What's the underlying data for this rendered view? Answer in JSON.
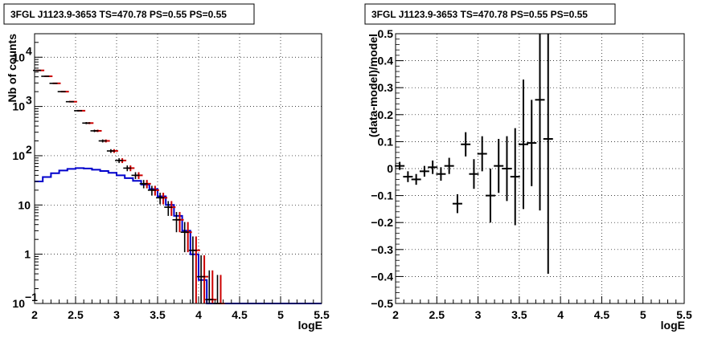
{
  "colors": {
    "data": "#000000",
    "model": "#cc0000",
    "source": "#0000cc",
    "grid": "#000000"
  },
  "chart_data": [
    {
      "type": "line",
      "title": "3FGL J1123.9-3653 TS=470.78 PS=0.55 PS=0.55",
      "xlabel": "logE",
      "ylabel": "Nb of counts",
      "xlim": [
        2,
        5.5
      ],
      "ylim": [
        0.1,
        30000
      ],
      "yscale": "log",
      "grid": true,
      "xticks": [
        {
          "v": 2,
          "t": "2"
        },
        {
          "v": 2.5,
          "t": "2.5"
        },
        {
          "v": 3,
          "t": "3"
        },
        {
          "v": 3.5,
          "t": "3.5"
        },
        {
          "v": 4,
          "t": "4"
        },
        {
          "v": 4.5,
          "t": "4.5"
        },
        {
          "v": 5,
          "t": "5"
        },
        {
          "v": 5.5,
          "t": "5.5"
        }
      ],
      "yticks": [
        {
          "v": 0.1,
          "t": "10",
          "e": "−1"
        },
        {
          "v": 1,
          "t": "1",
          "e": ""
        },
        {
          "v": 10,
          "t": "10",
          "e": ""
        },
        {
          "v": 100,
          "t": "10",
          "e": "2"
        },
        {
          "v": 1000,
          "t": "10",
          "e": "3"
        },
        {
          "v": 10000,
          "t": "10",
          "e": "4"
        }
      ],
      "data_points": {
        "x": [
          2.05,
          2.15,
          2.25,
          2.35,
          2.45,
          2.55,
          2.65,
          2.75,
          2.85,
          2.95,
          3.05,
          3.15,
          3.25,
          3.35,
          3.45,
          3.55,
          3.65,
          3.75,
          3.85,
          3.95,
          4.05,
          4.15,
          4.25
        ],
        "y": [
          5400,
          4100,
          2950,
          2000,
          1250,
          820,
          460,
          320,
          200,
          125,
          80,
          56,
          40,
          27,
          20,
          14,
          9,
          5,
          2.8,
          1.2,
          0.35,
          0.12,
          0.08
        ],
        "err": [
          75,
          65,
          55,
          45,
          36,
          29,
          22,
          18,
          14,
          11,
          9,
          7.5,
          6.3,
          5.2,
          4.5,
          3.7,
          3,
          2.2,
          1.7,
          1.1,
          0.6,
          0.35,
          0.3
        ]
      },
      "model": {
        "x": [
          2.05,
          2.15,
          2.25,
          2.35,
          2.45,
          2.55,
          2.65,
          2.75,
          2.85,
          2.95,
          3.05,
          3.15,
          3.25,
          3.35,
          3.45,
          3.55,
          3.65,
          3.75,
          3.85,
          3.95,
          4.05,
          4.15,
          4.25
        ],
        "y": [
          5400,
          4100,
          2950,
          2000,
          1250,
          820,
          460,
          320,
          200,
          125,
          80,
          56,
          40,
          27,
          20,
          14,
          9,
          5,
          2.8,
          1.2,
          0.35,
          0.12,
          0.08
        ],
        "err": [
          75,
          65,
          55,
          45,
          36,
          29,
          22,
          18,
          14,
          11,
          9,
          7.5,
          6.3,
          5.2,
          4.5,
          3.7,
          3,
          2.2,
          1.7,
          1.1,
          0.6,
          0.35,
          0.3
        ]
      },
      "source_model": {
        "edges": [
          2.0,
          2.1,
          2.2,
          2.3,
          2.4,
          2.5,
          2.6,
          2.7,
          2.8,
          2.9,
          3.0,
          3.1,
          3.2,
          3.3,
          3.4,
          3.5,
          3.6,
          3.7,
          3.8,
          3.9,
          4.0,
          4.1,
          4.2,
          4.3,
          4.4,
          4.5,
          4.6,
          4.7,
          4.8,
          4.9,
          5.0,
          5.1,
          5.2,
          5.3,
          5.4,
          5.5
        ],
        "y": [
          30,
          37,
          44,
          50,
          54,
          56,
          55,
          52,
          49,
          45,
          40,
          35,
          31,
          26,
          21,
          15,
          10,
          6,
          3,
          1,
          0.3,
          0.1,
          0.1,
          0.1,
          0.1,
          0.1,
          0.1,
          0.1,
          0.1,
          0.1,
          0.1,
          0.1,
          0.1,
          0.1,
          0.1
        ]
      }
    },
    {
      "type": "scatter",
      "title": "3FGL J1123.9-3653 TS=470.78 PS=0.55 PS=0.55",
      "xlabel": "logE",
      "ylabel": "(data-model)/model",
      "xlim": [
        2,
        5.5
      ],
      "ylim": [
        -0.5,
        0.5
      ],
      "grid": true,
      "xticks": [
        {
          "v": 2,
          "t": "2"
        },
        {
          "v": 2.5,
          "t": "2.5"
        },
        {
          "v": 3,
          "t": "3"
        },
        {
          "v": 3.5,
          "t": "3.5"
        },
        {
          "v": 4,
          "t": "4"
        },
        {
          "v": 4.5,
          "t": "4.5"
        },
        {
          "v": 5,
          "t": "5"
        },
        {
          "v": 5.5,
          "t": "5.5"
        }
      ],
      "yticks": [
        {
          "v": -0.5,
          "t": "−0.5"
        },
        {
          "v": -0.4,
          "t": "−0.4"
        },
        {
          "v": -0.3,
          "t": "−0.3"
        },
        {
          "v": -0.2,
          "t": "−0.2"
        },
        {
          "v": -0.1,
          "t": "−0.1"
        },
        {
          "v": 0,
          "t": "0"
        },
        {
          "v": 0.1,
          "t": "0.1"
        },
        {
          "v": 0.2,
          "t": "0.2"
        },
        {
          "v": 0.3,
          "t": "0.3"
        },
        {
          "v": 0.4,
          "t": "0.4"
        },
        {
          "v": 0.5,
          "t": "0.5"
        }
      ],
      "points": {
        "x": [
          2.05,
          2.15,
          2.25,
          2.35,
          2.45,
          2.55,
          2.65,
          2.75,
          2.85,
          2.95,
          3.05,
          3.15,
          3.25,
          3.35,
          3.45,
          3.55,
          3.65,
          3.75,
          3.85
        ],
        "y": [
          0.01,
          -0.03,
          -0.04,
          -0.01,
          0.005,
          -0.02,
          0.01,
          -0.13,
          0.09,
          -0.02,
          0.055,
          -0.1,
          0.01,
          0.0,
          -0.03,
          0.09,
          0.095,
          0.255,
          0.11
        ],
        "err": [
          0.015,
          0.02,
          0.02,
          0.02,
          0.025,
          0.025,
          0.03,
          0.035,
          0.045,
          0.055,
          0.065,
          0.1,
          0.1,
          0.12,
          0.18,
          0.24,
          0.16,
          0.41,
          0.5
        ]
      }
    }
  ]
}
